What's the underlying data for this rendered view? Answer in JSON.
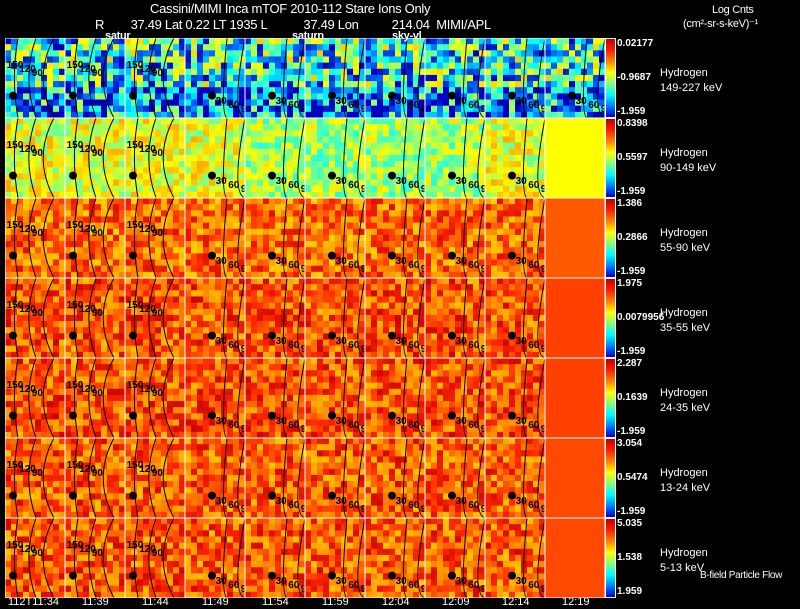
{
  "header": {
    "title": "Cassini/MIMI Inca mTOF  2010-112   Stare   Ions Only",
    "position_line": "R        37.49 Lat 0.22 LT 1935 L           37.49 Lon          214.04  MIMI/APL",
    "units_title": "Log Cnts",
    "units": "(cm²-sr-s-keV)⁻¹"
  },
  "overlay_labels": [
    "satur",
    "saturn",
    "sky-vl"
  ],
  "chart_data": {
    "type": "heatmap",
    "title": "Cassini/MIMI Inca mTOF 2010-112 Stare Ions Only",
    "time_labels": [
      "112T11:34",
      "11:39",
      "11:44",
      "11:49",
      "11:54",
      "11:59",
      "12:04",
      "12:09",
      "12:14",
      "12:19"
    ],
    "contour_levels": [
      30,
      60,
      90,
      120,
      150
    ],
    "rows": [
      {
        "species": "Hydrogen",
        "energy": "149-227 keV",
        "max": "0.02177",
        "mid": "-0.9687",
        "min": "-1.959",
        "level": 0.35
      },
      {
        "species": "Hydrogen",
        "energy": "90-149 keV",
        "max": "0.8398",
        "mid": "0.5597",
        "min": "-1.959",
        "level": 0.6
      },
      {
        "species": "Hydrogen",
        "energy": "55-90 keV",
        "max": "1.386",
        "mid": "0.2866",
        "min": "-1.959",
        "level": 0.82
      },
      {
        "species": "Hydrogen",
        "energy": "35-55 keV",
        "max": "1.975",
        "mid": "0.0079956",
        "min": "-1.959",
        "level": 0.85
      },
      {
        "species": "Hydrogen",
        "energy": "24-35 keV",
        "max": "2.287",
        "mid": "0.1639",
        "min": "-1.959",
        "level": 0.85
      },
      {
        "species": "Hydrogen",
        "energy": "13-24 keV",
        "max": "3.054",
        "mid": "0.5474",
        "min": "-1.959",
        "level": 0.84
      },
      {
        "species": "Hydrogen",
        "energy": "5-13 keV",
        "max": "5.035",
        "mid": "1.538",
        "min": "1.959",
        "level": 0.84
      }
    ]
  },
  "legend_footer": "B-field Particle Flow"
}
